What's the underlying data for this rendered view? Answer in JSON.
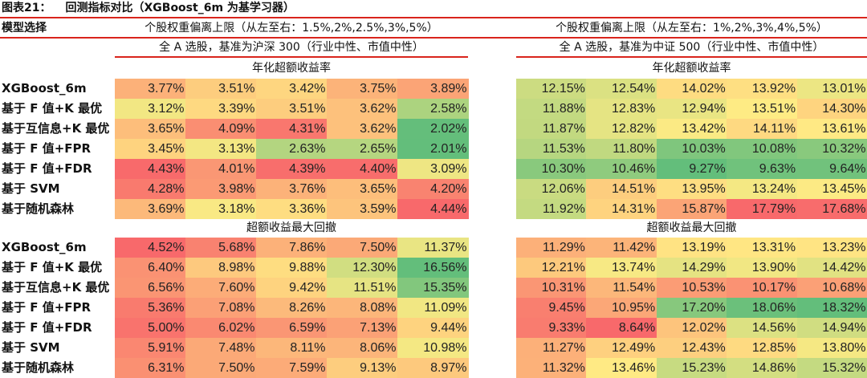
{
  "title": {
    "label": "图表21：",
    "text": "回测指标对比（XGBoost_6m 为基学习器）"
  },
  "model_header": "模型选择",
  "colors": {
    "rule": "#d9241c",
    "scale_low": "#63BE7B",
    "scale_mid": "#FFEB84",
    "scale_high": "#F8696B"
  },
  "left": {
    "deviation_header": "个股权重偏离上限（从左至右：1.5%,2%,2.5%,3%,5%）",
    "universe_header": "全 A 选股，基准为沪深 300（行业中性、市值中性）"
  },
  "right": {
    "deviation_header": "个股权重偏离上限（从左至右：1%,2%,3%,4%,5%）",
    "universe_header": "全 A 选股，基准为中证 500（行业中性、市值中性）"
  },
  "models": [
    "XGBoost_6m",
    "基于 F 值+K 最优",
    "基于互信息+K 最优",
    "基于 F 值+FPR",
    "基于 F 值+FDR",
    "基于 SVM",
    "基于随机森林"
  ],
  "blocks": [
    {
      "metric": "年化超额收益率",
      "scale": "high-red",
      "left": [
        [
          "3.77%",
          "3.51%",
          "3.42%",
          "3.75%",
          "3.89%"
        ],
        [
          "3.12%",
          "3.39%",
          "3.51%",
          "3.62%",
          "2.58%"
        ],
        [
          "3.65%",
          "4.09%",
          "4.31%",
          "3.62%",
          "2.02%"
        ],
        [
          "3.45%",
          "3.13%",
          "2.63%",
          "2.65%",
          "2.01%"
        ],
        [
          "4.43%",
          "4.01%",
          "4.39%",
          "4.40%",
          "3.09%"
        ],
        [
          "4.28%",
          "3.98%",
          "3.76%",
          "3.65%",
          "4.20%"
        ],
        [
          "3.69%",
          "3.18%",
          "3.36%",
          "3.59%",
          "4.44%"
        ]
      ],
      "right": [
        [
          "12.15%",
          "12.54%",
          "14.02%",
          "13.92%",
          "13.01%"
        ],
        [
          "11.88%",
          "12.83%",
          "12.94%",
          "13.51%",
          "14.30%"
        ],
        [
          "11.87%",
          "12.82%",
          "13.42%",
          "14.11%",
          "13.61%"
        ],
        [
          "11.53%",
          "11.80%",
          "10.03%",
          "10.08%",
          "10.32%"
        ],
        [
          "10.30%",
          "10.46%",
          "9.27%",
          "9.63%",
          "9.64%"
        ],
        [
          "12.06%",
          "14.51%",
          "13.95%",
          "13.24%",
          "13.45%"
        ],
        [
          "11.92%",
          "14.31%",
          "15.87%",
          "17.79%",
          "17.68%"
        ]
      ]
    },
    {
      "metric": "超额收益最大回撤",
      "scale": "high-green",
      "left": [
        [
          "4.52%",
          "5.68%",
          "7.86%",
          "7.50%",
          "11.37%"
        ],
        [
          "6.40%",
          "8.98%",
          "9.88%",
          "12.30%",
          "16.56%"
        ],
        [
          "6.56%",
          "7.60%",
          "9.42%",
          "11.51%",
          "15.35%"
        ],
        [
          "5.36%",
          "7.08%",
          "8.26%",
          "8.08%",
          "11.09%"
        ],
        [
          "5.00%",
          "6.02%",
          "6.59%",
          "7.13%",
          "9.44%"
        ],
        [
          "5.91%",
          "7.48%",
          "8.11%",
          "8.06%",
          "10.98%"
        ],
        [
          "6.31%",
          "7.50%",
          "7.59%",
          "9.13%",
          "8.97%"
        ]
      ],
      "right": [
        [
          "11.29%",
          "11.42%",
          "13.19%",
          "13.31%",
          "13.23%"
        ],
        [
          "12.21%",
          "13.74%",
          "14.29%",
          "13.90%",
          "14.42%"
        ],
        [
          "10.31%",
          "11.54%",
          "10.53%",
          "10.17%",
          "10.68%"
        ],
        [
          "9.45%",
          "10.95%",
          "17.20%",
          "18.06%",
          "18.32%"
        ],
        [
          "9.33%",
          "8.64%",
          "12.02%",
          "14.56%",
          "14.94%"
        ],
        [
          "11.27%",
          "12.49%",
          "12.43%",
          "12.85%",
          "13.80%"
        ],
        [
          "11.32%",
          "13.46%",
          "15.23%",
          "14.86%",
          "15.32%"
        ]
      ]
    }
  ]
}
